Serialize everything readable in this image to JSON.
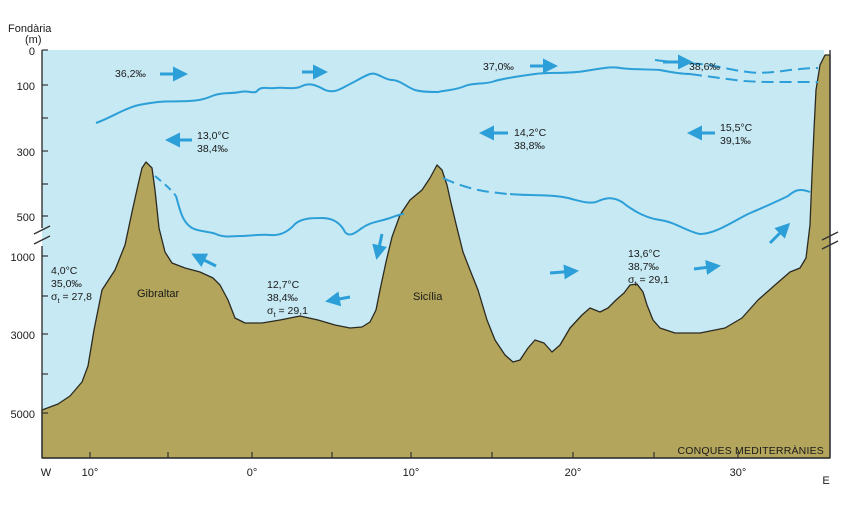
{
  "axis": {
    "title_line1": "Fondària",
    "title_line2": "(m)",
    "upper_ticks": [
      "0",
      "100",
      "300",
      "500"
    ],
    "lower_ticks": [
      "1000",
      "3000",
      "5000"
    ],
    "x_ticks": [
      "W",
      "10°",
      "0°",
      "10°",
      "20°",
      "30°",
      "E"
    ]
  },
  "caption": "CONQUES MEDITERRÀNIES",
  "places": {
    "gibraltar": "Gibraltar",
    "sicily": "Sicília"
  },
  "surface_water": {
    "atlantic_salinity": "36,2‰",
    "central_salinity": "37,0‰",
    "east_salinity": "38,6‰"
  },
  "intermediate_water": {
    "west": {
      "temperature": "13,0°C",
      "salinity": "38,4‰"
    },
    "central": {
      "temperature": "14,2°C",
      "salinity": "38,8‰"
    },
    "east": {
      "temperature": "15,5°C",
      "salinity": "39,1‰"
    }
  },
  "deep_water": {
    "atlantic": {
      "temperature": "4,0°C",
      "salinity": "35,0‰",
      "sigma_symbol": "σ",
      "sigma_sub": "t",
      "sigma_value": " = 27,8"
    },
    "western_basin": {
      "temperature": "12,7°C",
      "salinity": "38,4‰",
      "sigma_symbol": "σ",
      "sigma_sub": "t",
      "sigma_value": " = 29,1"
    },
    "eastern_basin": {
      "temperature": "13,6°C",
      "salinity": "38,7‰",
      "sigma_symbol": "σ",
      "sigma_sub": "t",
      "sigma_value": " = 29,1"
    }
  },
  "colors": {
    "water": "#c6e9f3",
    "seafloor": "#b3a55c",
    "seafloor_outline": "#2b2a22",
    "current_line": "#2c9fd8",
    "arrow": "#2c9fd8",
    "frame": "#333333"
  }
}
